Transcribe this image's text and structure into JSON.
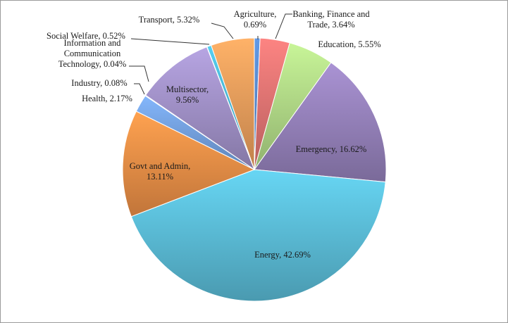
{
  "chart_data": {
    "type": "pie",
    "slices": [
      {
        "label": "Agriculture",
        "value": 0.69,
        "color": "#5b8fd6",
        "label_text": [
          "Agriculture,",
          "0.69%"
        ]
      },
      {
        "label": "Banking, Finance and Trade",
        "value": 3.64,
        "color": "#ea7a78",
        "label_text": [
          "Banking, Finance and",
          "Trade, 3.64%"
        ]
      },
      {
        "label": "Education",
        "value": 5.55,
        "color": "#b9e38d",
        "label_text": [
          "Education, 5.55%"
        ]
      },
      {
        "label": "Emergency",
        "value": 16.62,
        "color": "#9d88c4",
        "label_text": [
          "Emergency, 16.62%"
        ]
      },
      {
        "label": "Energy",
        "value": 42.69,
        "color": "#5fc6e2",
        "label_text": [
          "Energy, 42.69%"
        ]
      },
      {
        "label": "Govt and Admin",
        "value": 13.11,
        "color": "#f7964a",
        "label_text": [
          "Govt and Admin,",
          "13.11%"
        ]
      },
      {
        "label": "Health",
        "value": 2.17,
        "color": "#7aa9ea",
        "label_text": [
          "Health, 2.17%"
        ]
      },
      {
        "label": "Industry",
        "value": 0.08,
        "color": "#e66c6c",
        "label_text": [
          "Industry, 0.08%"
        ]
      },
      {
        "label": "Multisector",
        "value": 9.56,
        "color": "#a999d2",
        "label_text": [
          "Multisector,",
          "9.56%"
        ]
      },
      {
        "label": "Information and Communication Technology",
        "value": 0.04,
        "color": "#7fd3ea",
        "label_text": [
          "Information and",
          "Communication",
          "Technology, 0.04%"
        ]
      },
      {
        "label": "Social Welfare",
        "value": 0.52,
        "color": "#4fc0de",
        "label_text": [
          "Social Welfare, 0.52%"
        ]
      },
      {
        "label": "Transport",
        "value": 5.32,
        "color": "#f6a560",
        "label_text": [
          "Transport, 5.32%"
        ]
      }
    ]
  }
}
